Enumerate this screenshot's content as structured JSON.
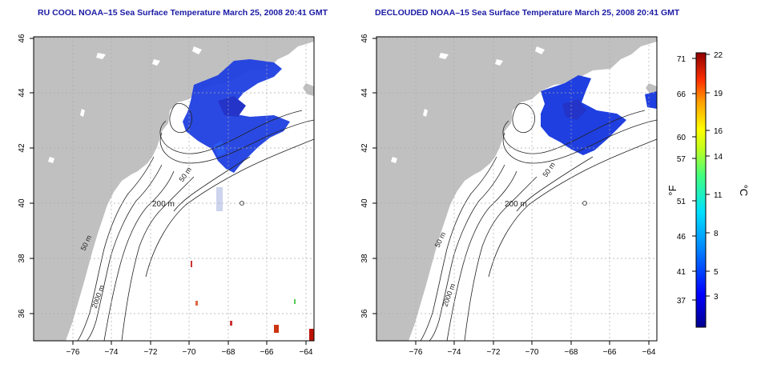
{
  "panels": [
    {
      "title": "RU COOL NOAA–15 Sea Surface Temperature March 25, 2008 20:41 GMT"
    },
    {
      "title": "DECLOUDED NOAA–15 Sea Surface Temperature March 25, 2008 20:41 GMT"
    }
  ],
  "axes": {
    "x_ticks": [
      "−76",
      "−74",
      "−72",
      "−70",
      "−68",
      "−66",
      "−64"
    ],
    "y_ticks": [
      "46",
      "44",
      "42",
      "40",
      "38",
      "36"
    ]
  },
  "contour_labels": {
    "m50": "50 m",
    "m200": "200 m",
    "m2000": "2000 m"
  },
  "colorbar": {
    "f_label": "°F",
    "c_label": "°C",
    "f_ticks": [
      "71",
      "66",
      "60",
      "57",
      "51",
      "46",
      "41",
      "37"
    ],
    "c_ticks": [
      "22",
      "19",
      "16",
      "14",
      "11",
      "8",
      "5",
      "3"
    ]
  },
  "colors": {
    "land": "#c0c0c0",
    "title": "#1a1aa6",
    "sst_cold": "#1f3fe0",
    "grid": "#aaaaaa"
  }
}
